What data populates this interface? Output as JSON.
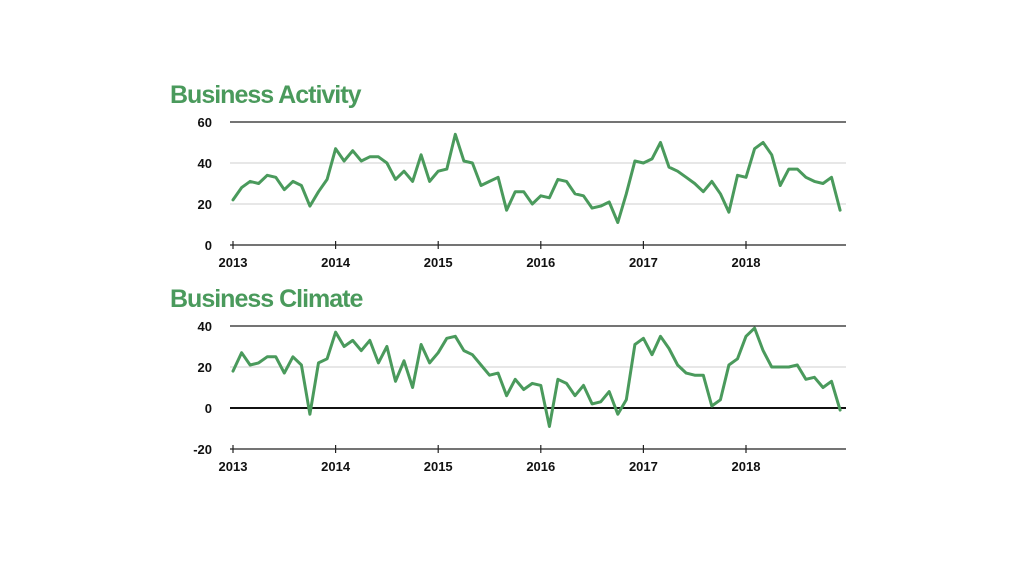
{
  "chart_data": [
    {
      "type": "line",
      "title": "Business Activity",
      "xlabel": "",
      "ylabel": "",
      "ylim": [
        0,
        60
      ],
      "yticks": [
        "0",
        "20",
        "40",
        "60"
      ],
      "xticks": [
        "2013",
        "2014",
        "2015",
        "2016",
        "2017",
        "2018"
      ],
      "start": "2013-01",
      "color": "#4a9a5c",
      "series": [
        {
          "name": "Business Activity",
          "values": [
            22,
            28,
            31,
            30,
            34,
            33,
            27,
            31,
            29,
            19,
            26,
            32,
            47,
            41,
            46,
            41,
            43,
            43,
            40,
            32,
            36,
            31,
            44,
            31,
            36,
            37,
            54,
            41,
            40,
            29,
            31,
            33,
            17,
            26,
            26,
            20,
            24,
            23,
            32,
            31,
            25,
            24,
            18,
            19,
            21,
            11,
            25,
            41,
            40,
            42,
            50,
            38,
            36,
            33,
            30,
            26,
            31,
            25,
            16,
            34,
            33,
            47,
            50,
            44,
            29,
            37,
            37,
            33,
            31,
            30,
            33,
            17
          ]
        }
      ]
    },
    {
      "type": "line",
      "title": "Business Climate",
      "xlabel": "",
      "ylabel": "",
      "ylim": [
        -20,
        40
      ],
      "yticks": [
        "-20",
        "0",
        "20",
        "40"
      ],
      "xticks": [
        "2013",
        "2014",
        "2015",
        "2016",
        "2017",
        "2018"
      ],
      "start": "2013-01",
      "color": "#4a9a5c",
      "series": [
        {
          "name": "Business Climate",
          "values": [
            18,
            27,
            21,
            22,
            25,
            25,
            17,
            25,
            21,
            -3,
            22,
            24,
            37,
            30,
            33,
            28,
            33,
            22,
            30,
            13,
            23,
            10,
            31,
            22,
            27,
            34,
            35,
            28,
            26,
            21,
            16,
            17,
            6,
            14,
            9,
            12,
            11,
            -9,
            14,
            12,
            6,
            11,
            2,
            3,
            8,
            -3,
            4,
            31,
            34,
            26,
            35,
            29,
            21,
            17,
            16,
            16,
            1,
            4,
            21,
            24,
            35,
            39,
            28,
            20,
            20,
            20,
            21,
            14,
            15,
            10,
            13,
            -1
          ]
        }
      ]
    }
  ]
}
